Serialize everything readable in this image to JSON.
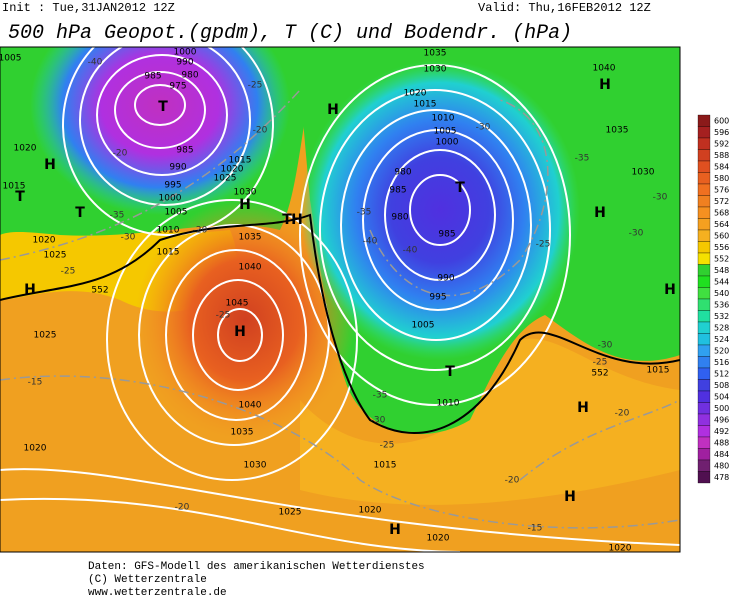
{
  "header": {
    "init": "Init : Tue,31JAN2012 12Z",
    "valid": "Valid: Thu,16FEB2012 12Z",
    "title": "500 hPa Geopot.(gpdm), T (C) und Bodendr. (hPa)"
  },
  "legend": {
    "levels": [
      600,
      596,
      592,
      588,
      584,
      580,
      576,
      572,
      568,
      564,
      560,
      556,
      552,
      548,
      544,
      540,
      536,
      532,
      528,
      524,
      520,
      516,
      512,
      508,
      504,
      500,
      496,
      492,
      488,
      484,
      480,
      478
    ],
    "colors": [
      "#8b1a1a",
      "#a52020",
      "#c03020",
      "#d04020",
      "#e05020",
      "#e86020",
      "#f07020",
      "#f08020",
      "#f59020",
      "#f5a020",
      "#f5b020",
      "#f5c800",
      "#f5e000",
      "#30d030",
      "#20e020",
      "#40e040",
      "#30e070",
      "#20e0a0",
      "#20d0d0",
      "#20c0e0",
      "#30a0f0",
      "#3080f0",
      "#3060f0",
      "#4040e0",
      "#5030e0",
      "#7030e0",
      "#9030e0",
      "#b030e0",
      "#c030c0",
      "#a020a0",
      "#702070",
      "#501050"
    ]
  },
  "map_labels": [
    "T",
    "H",
    "H",
    "T",
    "T",
    "H",
    "T",
    "H",
    "H",
    "H",
    "T",
    "T",
    "H",
    "H",
    "H",
    "H",
    "H",
    "H",
    "1000",
    "990",
    "985",
    "980",
    "975",
    "985",
    "990",
    "995",
    "1000",
    "1005",
    "1010",
    "1015",
    "1015",
    "1020",
    "1025",
    "1030",
    "1035",
    "1040",
    "1045",
    "1040",
    "1035",
    "1030",
    "1025",
    "1020",
    "1020",
    "1015",
    "1010",
    "1005",
    "995",
    "990",
    "985",
    "980",
    "985",
    "980",
    "1000",
    "1005",
    "1010",
    "1015",
    "1020",
    "1030",
    "1035",
    "1040",
    "1035",
    "1030",
    "1020",
    "1015",
    "1020",
    "1025",
    "1025",
    "1020",
    "1015",
    "1020",
    "552",
    "552",
    "1005",
    "-40",
    "-25",
    "-20",
    "-20",
    "-35",
    "-30",
    "-25",
    "-20",
    "-25",
    "-35",
    "-30",
    "-25",
    "-40",
    "-35",
    "-40",
    "-30",
    "-35",
    "-30",
    "-30",
    "-25",
    "-15",
    "-20",
    "-20",
    "-15",
    "-30",
    "-25",
    "-20"
  ],
  "footer": {
    "source": "Daten: GFS-Modell des amerikanischen Wetterdienstes",
    "copyright": "(C) Wetterzentrale",
    "url": "www.wetterzentrale.de"
  }
}
